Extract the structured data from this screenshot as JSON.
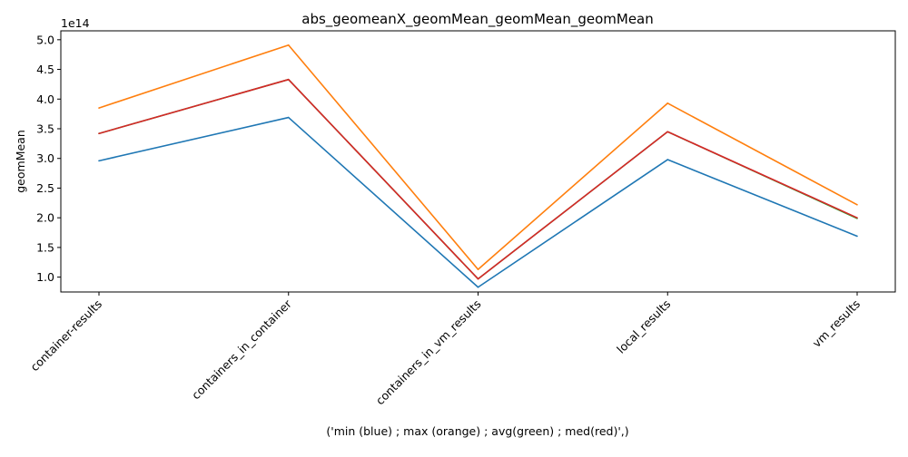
{
  "chart_data": {
    "type": "line",
    "title": "abs_geomeanX_geomMean_geomMean_geomMean",
    "xlabel": "('min (blue) ; max (orange) ; avg(green) ; med(red)',)",
    "ylabel": "geomMean",
    "y_offset_label": "1e14",
    "categories": [
      "container-results",
      "containers_in_container",
      "containers_in_vm_results",
      "local_results",
      "vm_results"
    ],
    "y_tick_values": [
      1.0,
      1.5,
      2.0,
      2.5,
      3.0,
      3.5,
      4.0,
      4.5,
      5.0
    ],
    "y_tick_labels": [
      "1.0",
      "1.5",
      "2.0",
      "2.5",
      "3.0",
      "3.5",
      "4.0",
      "4.5",
      "5.0"
    ],
    "ylim": [
      0.75,
      5.15
    ],
    "grid": false,
    "legend": "none",
    "series": [
      {
        "color": "#1f77b4",
        "values": [
          2.96,
          3.69,
          0.83,
          2.98,
          1.69
        ]
      },
      {
        "color": "#ff7f0e",
        "values": [
          3.85,
          4.91,
          1.13,
          3.93,
          2.22
        ]
      },
      {
        "color": "#2ca02c",
        "values": [
          3.42,
          4.33,
          0.97,
          3.45,
          1.99
        ]
      },
      {
        "color": "#d62728",
        "values": [
          3.42,
          4.33,
          0.97,
          3.45,
          2.0
        ]
      }
    ]
  }
}
